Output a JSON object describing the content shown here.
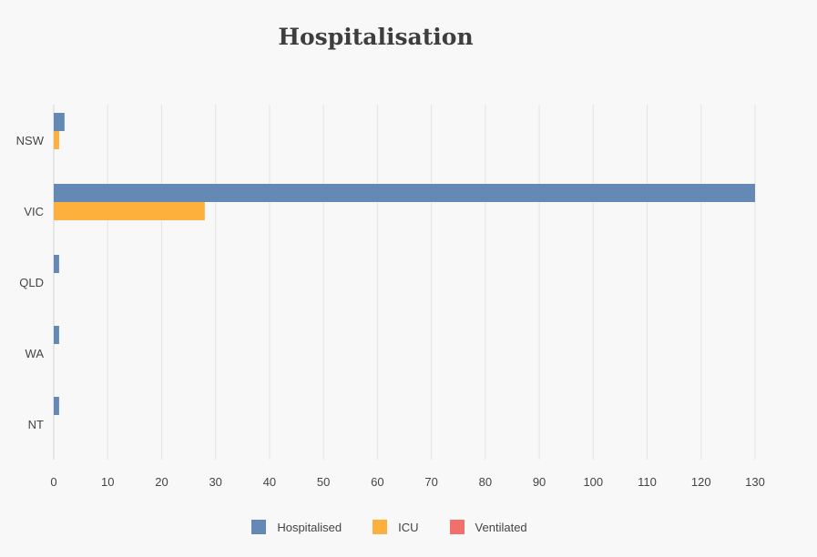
{
  "chart_data": {
    "type": "bar",
    "orientation": "horizontal",
    "title": "Hospitalisation",
    "categories": [
      "NSW",
      "VIC",
      "QLD",
      "WA",
      "NT"
    ],
    "series": [
      {
        "name": "Hospitalised",
        "color": "#6489b5",
        "values": [
          2,
          130,
          1,
          1,
          1
        ]
      },
      {
        "name": "ICU",
        "color": "#fdb03b",
        "values": [
          1,
          28,
          0,
          0,
          0
        ]
      },
      {
        "name": "Ventilated",
        "color": "#f0706a",
        "values": [
          0,
          0,
          0,
          0,
          0
        ]
      }
    ],
    "xticks": [
      0,
      10,
      20,
      30,
      40,
      50,
      60,
      70,
      80,
      90,
      100,
      110,
      120,
      130
    ],
    "xlim": [
      0,
      130
    ],
    "grid": true,
    "legend_position": "bottom"
  }
}
